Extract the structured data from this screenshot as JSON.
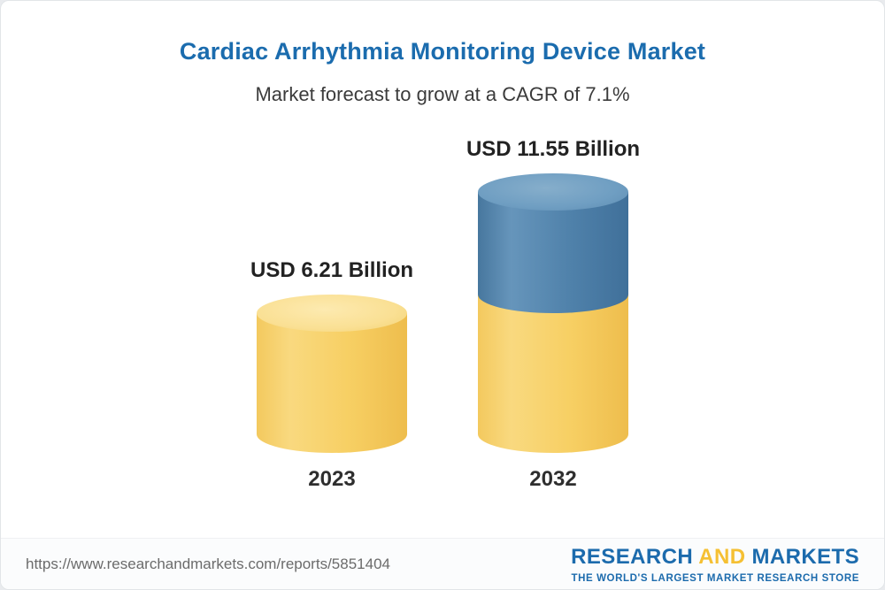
{
  "header": {
    "title": "Cardiac Arrhythmia Monitoring Device Market",
    "subtitle": "Market forecast to grow at a CAGR of 7.1%"
  },
  "chart_data": {
    "type": "bar",
    "variant": "cylinder",
    "title": "Cardiac Arrhythmia Monitoring Device Market",
    "subtitle": "Market forecast to grow at a CAGR of 7.1%",
    "categories": [
      "2023",
      "2032"
    ],
    "values": [
      6.21,
      11.55
    ],
    "value_labels": [
      "USD 6.21 Billion",
      "USD 11.55 Billion"
    ],
    "ylim": [
      0,
      12
    ],
    "grid": false,
    "legend": "none",
    "colors": {
      "base": "#F6CD62",
      "growth": "#4E81AB",
      "title": "#1B6CAE"
    },
    "bars": [
      {
        "year": "2023",
        "label": "USD 6.21 Billion",
        "segments": [
          {
            "value": 6.21,
            "color": "base"
          }
        ]
      },
      {
        "year": "2032",
        "label": "USD 11.55 Billion",
        "segments": [
          {
            "value": 6.21,
            "color": "base"
          },
          {
            "value": 5.34,
            "color": "growth"
          }
        ]
      }
    ]
  },
  "footer": {
    "url": "https://www.researchandmarkets.com/reports/5851404",
    "logo": {
      "research": "RESEARCH",
      "and": "AND",
      "markets": "MARKETS",
      "tagline": "THE WORLD'S LARGEST MARKET RESEARCH STORE"
    }
  }
}
